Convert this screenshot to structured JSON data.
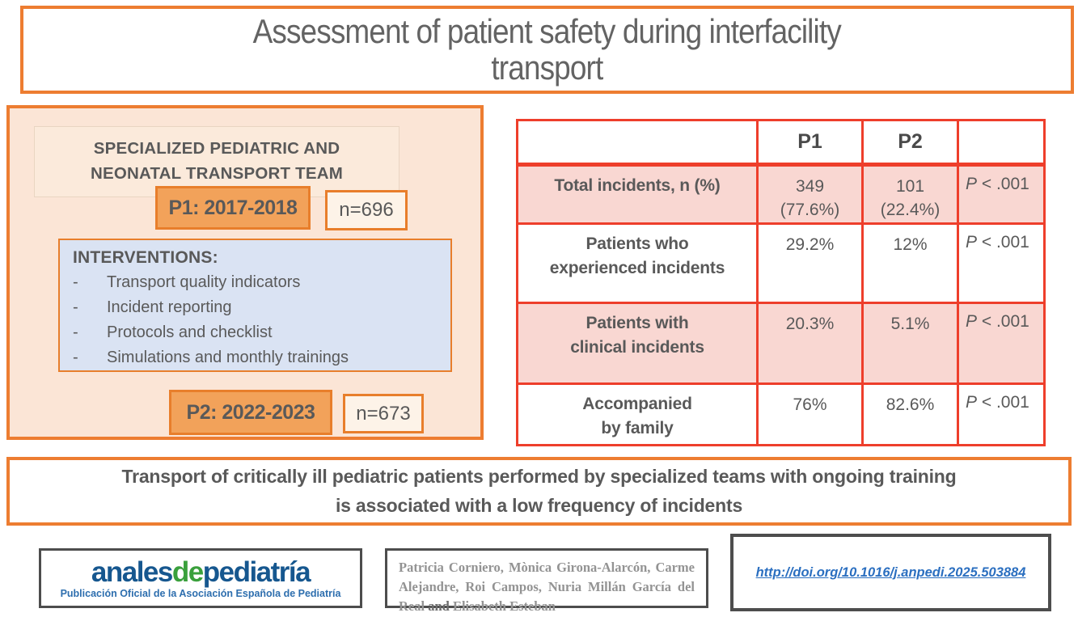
{
  "title": {
    "line1": "Assessment of patient safety during interfacility",
    "line2": "transport"
  },
  "left_panel": {
    "heading": "SPECIALIZED PEDIATRIC AND NEONATAL TRANSPORT TEAM",
    "p1_label": "P1: 2017-2018",
    "p1_n": "n=696",
    "interventions_heading": "INTERVENTIONS:",
    "dash": "-",
    "interventions": [
      "Transport quality indicators",
      "Incident reporting",
      "Protocols and checklist",
      "Simulations and monthly trainings"
    ],
    "p2_label": "P2: 2022-2023",
    "p2_n": "n=673"
  },
  "table": {
    "col_p1": "P1",
    "col_p2": "P2",
    "rows": [
      {
        "label_line1": "Total incidents, n (%)",
        "label_line2": "",
        "p1": "349",
        "p1_sub": "(77.6%)",
        "p2": "101",
        "p2_sub": "(22.4%)",
        "p_symbol": "P",
        "p_value": " < .001"
      },
      {
        "label_line1": "Patients who",
        "label_line2": "experienced incidents",
        "p1": "29.2%",
        "p1_sub": "",
        "p2": "12%",
        "p2_sub": "",
        "p_symbol": "P",
        "p_value": " < .001"
      },
      {
        "label_line1": "Patients with",
        "label_line2": "clinical incidents",
        "p1": "20.3%",
        "p1_sub": "",
        "p2": "5.1%",
        "p2_sub": "",
        "p_symbol": "P",
        "p_value": " < .001"
      },
      {
        "label_line1": "Accompanied",
        "label_line2": "by family",
        "p1": "76%",
        "p1_sub": "",
        "p2": "82.6%",
        "p2_sub": "",
        "p_symbol": "P",
        "p_value": " < .001"
      }
    ]
  },
  "banner": {
    "line1": "Transport of critically ill pediatric patients performed by specialized teams with ongoing training",
    "line2": "is associated with a low frequency of incidents"
  },
  "footer": {
    "logo": {
      "part1": "anales",
      "part2": "de",
      "part3": "pediatría",
      "subtitle": "Publicación Oficial de la Asociación Española de Pediatría"
    },
    "authors": {
      "before_and": "Patricia Corniero, Mònica Girona-Alarcón, Carme Alejandre, Roi Campos, Nuria Millán García del Real ",
      "and_word": "and",
      "after_and": " Elisabeth Esteban"
    },
    "doi": "http://doi.org/10.1016/j.anpedi.2025.503884"
  },
  "colors": {
    "accent_orange_border": "#ED7D31",
    "panel_fill": "#FBE5D6",
    "period_fill": "#F2A25A",
    "n_box_fill": "#FDF3E8",
    "interventions_fill": "#DAE3F3",
    "table_border_red": "#EE3E2B",
    "table_shaded_pink": "#F9D7D2",
    "text_gray": "#595959",
    "logo_blue": "#16578F",
    "logo_green": "#3AA03C",
    "doi_blue": "#2B6FC0"
  }
}
